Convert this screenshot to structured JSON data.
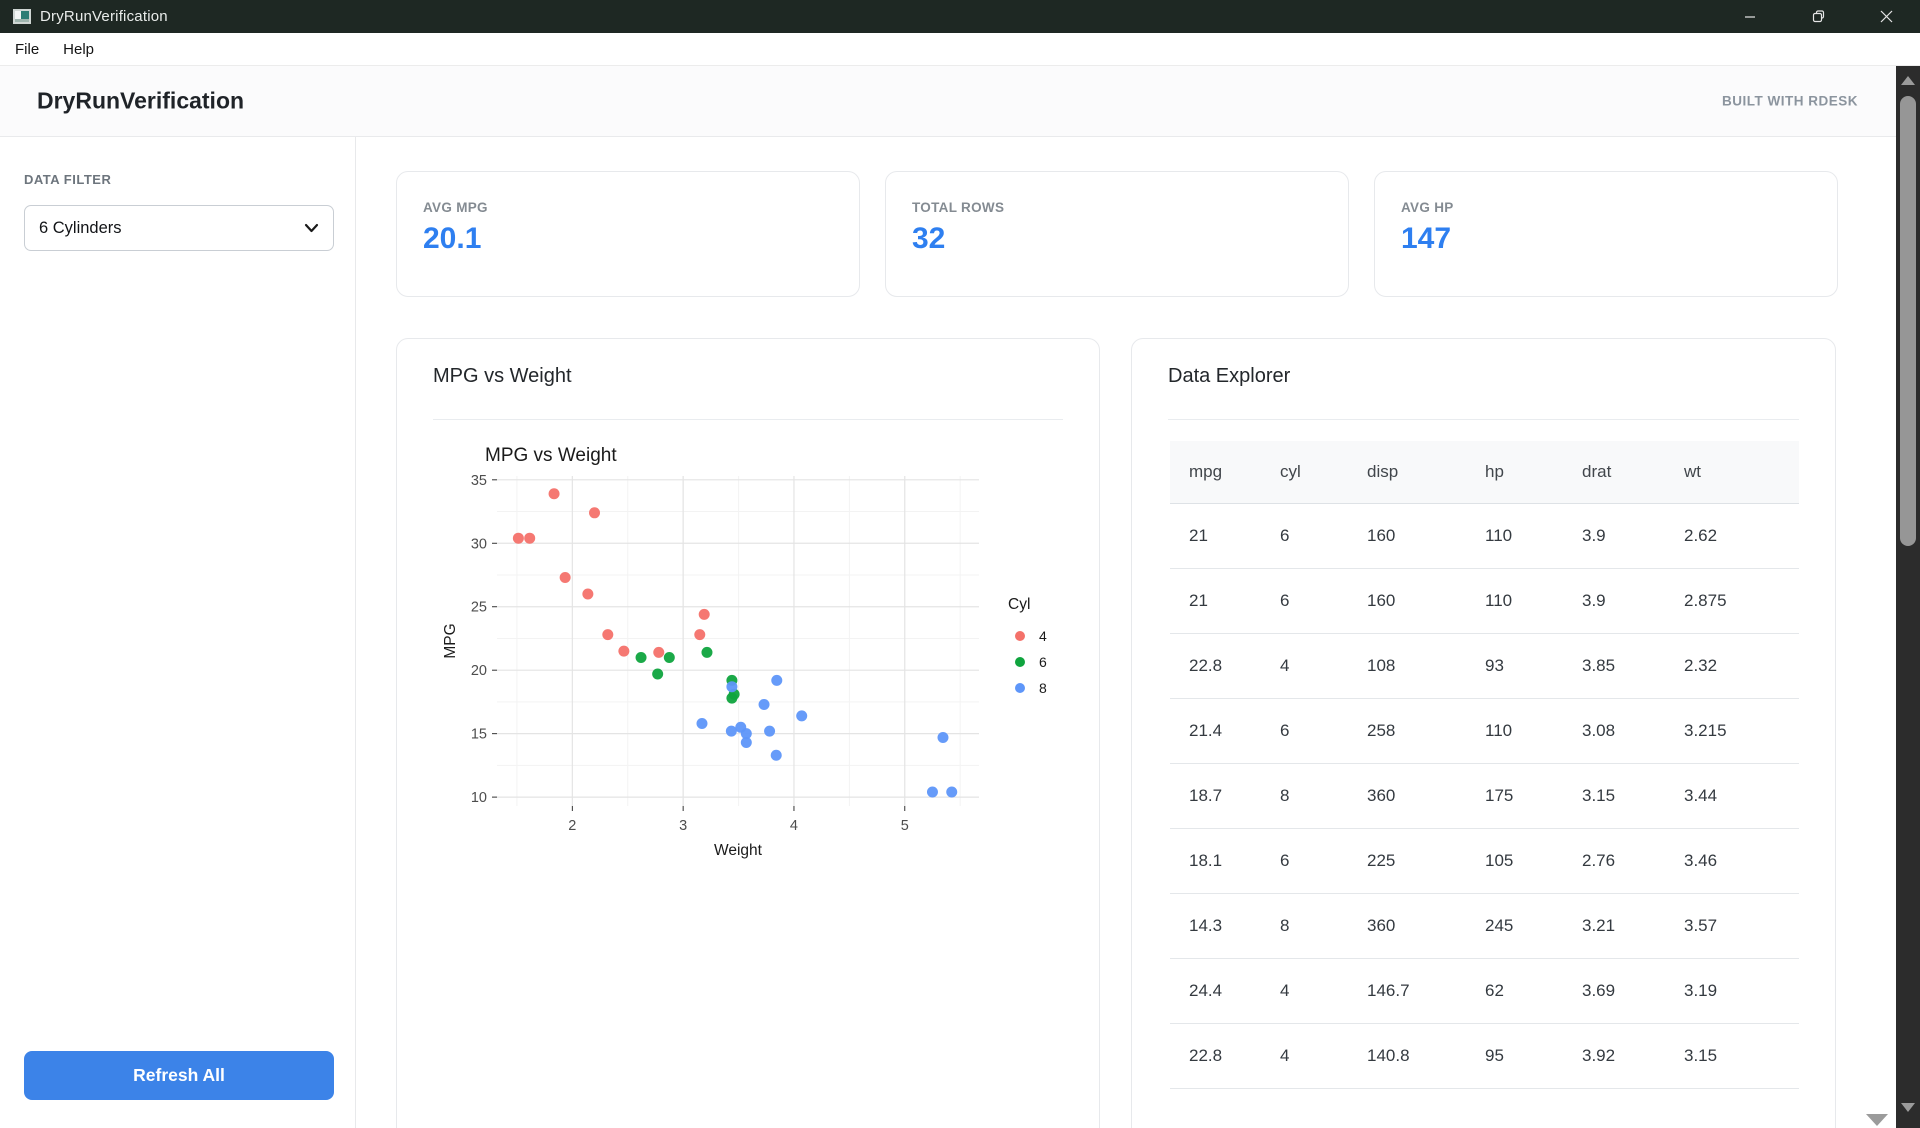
{
  "window": {
    "title": "DryRunVerification"
  },
  "menu": {
    "items": [
      "File",
      "Help"
    ]
  },
  "header": {
    "title": "DryRunVerification",
    "badge": "BUILT WITH RDESK"
  },
  "sidebar": {
    "filter_label": "DATA FILTER",
    "filter_value": "6 Cylinders",
    "refresh_label": "Refresh All"
  },
  "stats": [
    {
      "label": "AVG MPG",
      "value": "20.1"
    },
    {
      "label": "TOTAL ROWS",
      "value": "32"
    },
    {
      "label": "AVG HP",
      "value": "147"
    }
  ],
  "chart_card": {
    "title": "MPG vs Weight"
  },
  "table_card": {
    "title": "Data Explorer",
    "columns": [
      "mpg",
      "cyl",
      "disp",
      "hp",
      "drat",
      "wt"
    ],
    "rows": [
      [
        "21",
        "6",
        "160",
        "110",
        "3.9",
        "2.62"
      ],
      [
        "21",
        "6",
        "160",
        "110",
        "3.9",
        "2.875"
      ],
      [
        "22.8",
        "4",
        "108",
        "93",
        "3.85",
        "2.32"
      ],
      [
        "21.4",
        "6",
        "258",
        "110",
        "3.08",
        "3.215"
      ],
      [
        "18.7",
        "8",
        "360",
        "175",
        "3.15",
        "3.44"
      ],
      [
        "18.1",
        "6",
        "225",
        "105",
        "2.76",
        "3.46"
      ],
      [
        "14.3",
        "8",
        "360",
        "245",
        "3.21",
        "3.57"
      ],
      [
        "24.4",
        "4",
        "146.7",
        "62",
        "3.69",
        "3.19"
      ],
      [
        "22.8",
        "4",
        "140.8",
        "95",
        "3.92",
        "3.15"
      ]
    ]
  },
  "colors": {
    "accent_blue": "#2e7ff0",
    "button_blue": "#3c83e8",
    "titlebar": "#1e2823",
    "grid_major": "#e4e4e4",
    "grid_minor": "#f3f3f3",
    "tick": "#333333",
    "tick_label": "#4d4d4d"
  },
  "chart_data": {
    "type": "scatter",
    "title": "MPG vs Weight",
    "xlabel": "Weight",
    "ylabel": "MPG",
    "xlim": [
      1.32,
      5.67
    ],
    "ylim": [
      9.3,
      35.3
    ],
    "x_ticks": [
      2,
      3,
      4,
      5
    ],
    "y_ticks": [
      10,
      15,
      20,
      25,
      30,
      35
    ],
    "x_minor": [
      1.5,
      2.5,
      3.5,
      4.5,
      5.5
    ],
    "y_minor": [
      12.5,
      17.5,
      22.5,
      27.5,
      32.5
    ],
    "legend_title": "Cyl",
    "legend_position": "right",
    "grid": true,
    "series": [
      {
        "name": "4",
        "color": "#f4716a",
        "points": [
          [
            2.32,
            22.8
          ],
          [
            3.19,
            24.4
          ],
          [
            3.15,
            22.8
          ],
          [
            2.2,
            32.4
          ],
          [
            1.615,
            30.4
          ],
          [
            1.835,
            33.9
          ],
          [
            2.465,
            21.5
          ],
          [
            1.935,
            27.3
          ],
          [
            2.14,
            26.0
          ],
          [
            1.513,
            30.4
          ],
          [
            2.78,
            21.4
          ]
        ]
      },
      {
        "name": "6",
        "color": "#0fa43e",
        "points": [
          [
            2.62,
            21.0
          ],
          [
            2.875,
            21.0
          ],
          [
            3.215,
            21.4
          ],
          [
            3.46,
            18.1
          ],
          [
            3.44,
            19.2
          ],
          [
            3.44,
            17.8
          ],
          [
            2.77,
            19.7
          ]
        ]
      },
      {
        "name": "8",
        "color": "#5e96f9",
        "points": [
          [
            3.44,
            18.7
          ],
          [
            3.57,
            14.3
          ],
          [
            4.07,
            16.4
          ],
          [
            3.73,
            17.3
          ],
          [
            3.78,
            15.2
          ],
          [
            5.25,
            10.4
          ],
          [
            5.424,
            10.4
          ],
          [
            5.345,
            14.7
          ],
          [
            3.52,
            15.5
          ],
          [
            3.435,
            15.2
          ],
          [
            3.84,
            13.3
          ],
          [
            3.845,
            19.2
          ],
          [
            3.17,
            15.8
          ],
          [
            3.57,
            15.0
          ]
        ]
      }
    ]
  }
}
